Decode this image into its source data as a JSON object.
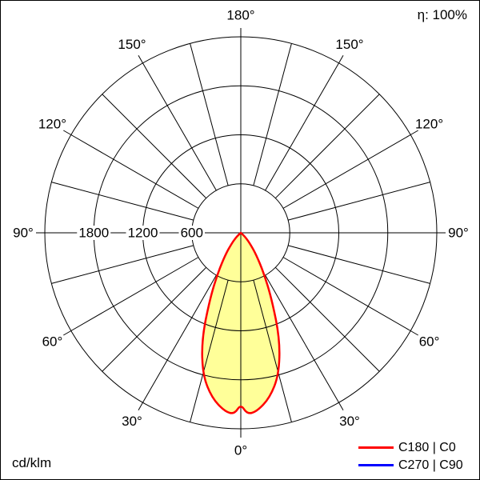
{
  "header": {
    "efficiency": "η: 100%"
  },
  "footer": {
    "unit": "cd/klm"
  },
  "legend": {
    "items": [
      {
        "label": "C180 | C0",
        "color": "#ff0000"
      },
      {
        "label": "C270 | C90",
        "color": "#0000ff"
      }
    ]
  },
  "chart_data": {
    "type": "line",
    "variant": "polar-luminous-intensity-distribution",
    "units": "cd/klm",
    "efficiency": "100%",
    "center": {
      "x": 300,
      "y": 290
    },
    "outer_radius_px": 245,
    "r_max_value": 2400,
    "radial_ticks": [
      600,
      1200,
      1800
    ],
    "radial_tick_labels": [
      "600",
      "1200",
      "1800"
    ],
    "angle_step_deg": 15,
    "angle_label_step_deg": 30,
    "angle_labels": [
      "0°",
      "30°",
      "60°",
      "90°",
      "120°",
      "150°",
      "180°"
    ],
    "grid_color": "#000000",
    "series": [
      {
        "name": "C180 | C0",
        "color": "#ff0000",
        "fill": "#ffff99",
        "gamma_deg": [
          -55,
          -50,
          -45,
          -40,
          -35,
          -30,
          -25,
          -20,
          -15,
          -10,
          -5,
          -2,
          0,
          2,
          5,
          10,
          15,
          20,
          25,
          30,
          35,
          40,
          45,
          50,
          55
        ],
        "values": [
          0,
          30,
          90,
          180,
          330,
          550,
          900,
          1400,
          1800,
          2050,
          2200,
          2220,
          2100,
          2220,
          2200,
          2050,
          1800,
          1400,
          900,
          550,
          330,
          180,
          90,
          30,
          0
        ]
      },
      {
        "name": "C270 | C90",
        "color": "#0000ff",
        "gamma_deg": [],
        "values": []
      }
    ]
  }
}
